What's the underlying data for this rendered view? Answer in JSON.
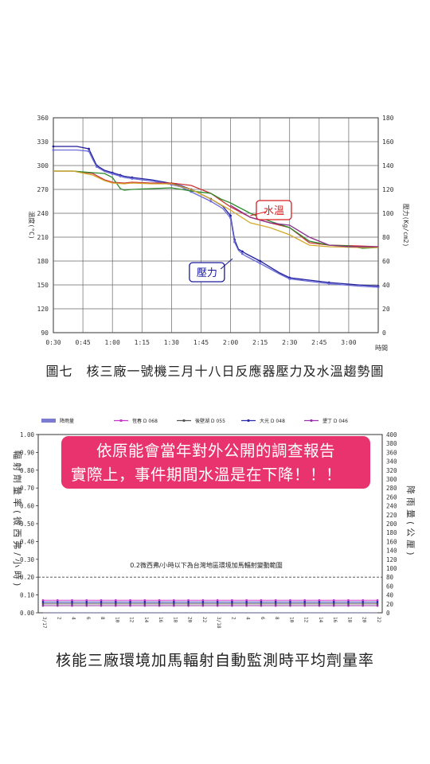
{
  "chart_data": [
    {
      "type": "line",
      "xlabel": "時間",
      "ylabel": "溫度(°C)",
      "y2label": "壓力(Kg/cm2)",
      "x_ticks": [
        "0:30",
        "0:45",
        "1:00",
        "1:15",
        "1:30",
        "1:45",
        "2:00",
        "2:15",
        "2:30",
        "2:45",
        "3:00"
      ],
      "y_ticks": [
        90,
        120,
        150,
        180,
        210,
        240,
        270,
        300,
        330,
        360
      ],
      "y2_ticks": [
        0,
        20,
        40,
        60,
        80,
        100,
        120,
        140,
        160,
        180
      ],
      "xlim_minutes": [
        30,
        195
      ],
      "ylim": [
        90,
        360
      ],
      "y2lim": [
        0,
        180
      ],
      "grid": true,
      "annotations": [
        {
          "text": "水溫",
          "color": "#d62020",
          "x_minutes": 142,
          "y": 244
        },
        {
          "text": "壓力",
          "color": "#1a1aa0",
          "x_minutes": 108,
          "y": 166
        }
      ],
      "series": [
        {
          "color": "#1f1f9c",
          "axis": "right",
          "x": [
            30,
            42,
            48,
            50,
            52,
            56,
            60,
            62,
            64,
            66,
            70,
            80,
            90,
            95,
            100,
            105,
            110,
            116,
            120,
            121,
            122,
            124,
            126,
            128,
            135,
            145,
            150,
            160,
            170,
            185,
            195
          ],
          "y": [
            156,
            156,
            154,
            147,
            140,
            136,
            134,
            133,
            132,
            131,
            130,
            128,
            125,
            123,
            120,
            116,
            112,
            106,
            98,
            88,
            78,
            70,
            68,
            66,
            60,
            50,
            46,
            44,
            42,
            40,
            39
          ]
        },
        {
          "color": "#6a6ad8",
          "axis": "right",
          "x": [
            30,
            42,
            48,
            50,
            52,
            56,
            60,
            62,
            64,
            66,
            70,
            80,
            90,
            95,
            100,
            105,
            110,
            116,
            120,
            121,
            122,
            124,
            126,
            128,
            135,
            145,
            150,
            160,
            170,
            185,
            195
          ],
          "y": [
            153,
            153,
            152,
            145,
            139,
            135,
            133,
            132,
            131,
            130,
            129,
            127,
            124,
            122,
            118,
            114,
            110,
            104,
            96,
            86,
            76,
            69,
            66,
            64,
            58,
            49,
            45,
            43,
            41,
            39,
            38
          ]
        },
        {
          "color": "#cc3333",
          "axis": "left",
          "x": [
            30,
            40,
            50,
            56,
            60,
            66,
            70,
            80,
            90,
            100,
            110,
            120,
            130,
            140,
            150,
            160,
            170,
            185,
            195
          ],
          "y": [
            293,
            293,
            290,
            282,
            279,
            278,
            279,
            278,
            278,
            275,
            265,
            248,
            235,
            228,
            222,
            203,
            200,
            199,
            198
          ]
        },
        {
          "color": "#2e8b2e",
          "axis": "left",
          "x": [
            30,
            40,
            45,
            50,
            56,
            60,
            64,
            66,
            70,
            80,
            90,
            100,
            110,
            115,
            120,
            130,
            140,
            150,
            160,
            170,
            180,
            187,
            195
          ],
          "y": [
            293,
            293,
            292,
            291,
            290,
            285,
            271,
            269,
            270,
            271,
            272,
            268,
            265,
            258,
            253,
            240,
            230,
            222,
            205,
            200,
            199,
            196,
            197
          ]
        },
        {
          "color": "#d4a92a",
          "axis": "left",
          "x": [
            30,
            40,
            50,
            56,
            60,
            66,
            70,
            80,
            90,
            100,
            110,
            120,
            130,
            140,
            150,
            160,
            170,
            185,
            195
          ],
          "y": [
            293,
            293,
            288,
            281,
            278,
            277,
            278,
            277,
            277,
            270,
            258,
            244,
            228,
            222,
            213,
            200,
            198,
            197,
            197
          ]
        },
        {
          "color": "#8a2e8a",
          "axis": "left",
          "x": [
            120,
            130,
            140,
            150,
            160,
            170,
            180,
            195
          ],
          "y": [
            250,
            235,
            228,
            225,
            210,
            200,
            198,
            198
          ]
        }
      ]
    },
    {
      "type": "line",
      "ylabel": "輻射劑量率(微西弗/小時)",
      "y2label": "降雨量(公厘)",
      "y_ticks": [
        "0.00",
        "0.10",
        "0.20",
        "0.30",
        "0.40",
        "0.50",
        "0.60",
        "0.70",
        "0.80",
        "0.90",
        "1.00"
      ],
      "y2_ticks": [
        0,
        20,
        40,
        60,
        80,
        100,
        120,
        140,
        160,
        180,
        200,
        220,
        240,
        260,
        280,
        300,
        320,
        340,
        360,
        380,
        400
      ],
      "ylim": [
        0,
        1
      ],
      "y2lim": [
        0,
        400
      ],
      "reference_line": {
        "y": 0.2,
        "text": "0.2微西弗/小時以下為台灣地區環境加馬輻射變動範圍"
      },
      "x_ticks": [
        "3/17",
        "2",
        "4",
        "6",
        "8",
        "10",
        "12",
        "14",
        "16",
        "18",
        "20",
        "22",
        "3/18",
        "2",
        "4",
        "6",
        "8",
        "10",
        "12",
        "14",
        "16",
        "18",
        "20",
        "22"
      ],
      "legend": [
        "降雨量",
        "恆春 D 068",
        "後壁湖 D 055",
        "大光 D 048",
        "墾丁 D 046"
      ],
      "series": [
        {
          "name": "降雨量",
          "color": "#7b7bd0",
          "axis": "right",
          "values": [
            0,
            0,
            0,
            0,
            0,
            0,
            0,
            0,
            0,
            0,
            0,
            0,
            0,
            0,
            0,
            0,
            0,
            0,
            0,
            0,
            0,
            0,
            0,
            0
          ]
        },
        {
          "name": "恆春 D 068",
          "color": "#cc33cc",
          "axis": "left",
          "values": [
            0.07,
            0.07,
            0.07,
            0.07,
            0.07,
            0.07,
            0.07,
            0.07,
            0.07,
            0.07,
            0.07,
            0.07,
            0.07,
            0.07,
            0.07,
            0.07,
            0.07,
            0.07,
            0.07,
            0.07,
            0.07,
            0.07,
            0.07,
            0.07
          ]
        },
        {
          "name": "後壁湖 D 055",
          "color": "#555555",
          "axis": "left",
          "values": [
            0.05,
            0.05,
            0.05,
            0.05,
            0.05,
            0.05,
            0.05,
            0.05,
            0.05,
            0.05,
            0.05,
            0.05,
            0.05,
            0.05,
            0.05,
            0.05,
            0.05,
            0.05,
            0.05,
            0.05,
            0.05,
            0.05,
            0.05,
            0.05
          ]
        },
        {
          "name": "大光 D 048",
          "color": "#2a2ab0",
          "axis": "left",
          "values": [
            0.06,
            0.06,
            0.06,
            0.06,
            0.06,
            0.06,
            0.06,
            0.06,
            0.06,
            0.06,
            0.06,
            0.06,
            0.06,
            0.06,
            0.06,
            0.06,
            0.06,
            0.06,
            0.06,
            0.06,
            0.06,
            0.06,
            0.06,
            0.06
          ]
        },
        {
          "name": "墾丁 D 046",
          "color": "#9933aa",
          "axis": "left",
          "values": [
            0.04,
            0.04,
            0.04,
            0.04,
            0.04,
            0.04,
            0.04,
            0.04,
            0.04,
            0.04,
            0.04,
            0.04,
            0.04,
            0.04,
            0.04,
            0.04,
            0.04,
            0.04,
            0.04,
            0.04,
            0.04,
            0.04,
            0.04,
            0.04
          ]
        }
      ]
    }
  ],
  "captions": {
    "figure7": "圖七　核三廠一號機三月十八日反應器壓力及水溫趨勢圖",
    "gamma": "核能三廠環境加馬輻射自動監測時平均劑量率"
  },
  "banner": {
    "line1": "依原能會當年對外公開的調查報告",
    "line2": "實際上，事件期間水溫是在下降！！！",
    "color": "#e8336f"
  }
}
